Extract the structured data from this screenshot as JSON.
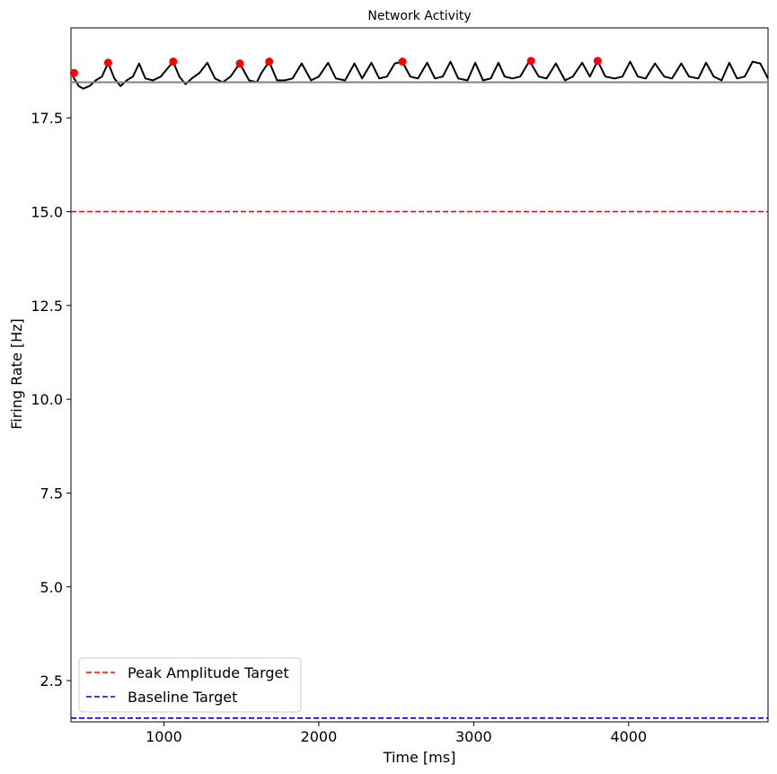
{
  "chart_data": {
    "type": "line",
    "title": "Network Activity",
    "xlabel": "Time [ms]",
    "ylabel": "Firing Rate [Hz]",
    "xlim": [
      400,
      4900
    ],
    "ylim": [
      1.4,
      19.9
    ],
    "xticks": [
      1000,
      2000,
      3000,
      4000
    ],
    "yticks": [
      2.5,
      5.0,
      7.5,
      10.0,
      12.5,
      15.0,
      17.5
    ],
    "xtick_labels": [
      "1000",
      "2000",
      "3000",
      "4000"
    ],
    "ytick_labels": [
      "2.5",
      "5.0",
      "7.5",
      "10.0",
      "12.5",
      "15.0",
      "17.5"
    ],
    "grid": false,
    "legend_position": "bottom-left",
    "series": [
      {
        "role": "firing-rate",
        "color": "#000000",
        "x": [
          400,
          450,
          480,
          520,
          560,
          600,
          640,
          680,
          720,
          760,
          800,
          840,
          880,
          930,
          980,
          1020,
          1060,
          1100,
          1140,
          1180,
          1230,
          1280,
          1330,
          1380,
          1430,
          1490,
          1550,
          1600,
          1630,
          1680,
          1730,
          1780,
          1830,
          1890,
          1950,
          2000,
          2060,
          2110,
          2170,
          2230,
          2280,
          2340,
          2390,
          2440,
          2490,
          2540,
          2590,
          2640,
          2700,
          2750,
          2800,
          2850,
          2900,
          2960,
          3010,
          3060,
          3110,
          3160,
          3200,
          3250,
          3300,
          3360,
          3420,
          3470,
          3530,
          3590,
          3640,
          3700,
          3750,
          3800,
          3850,
          3910,
          3960,
          4010,
          4060,
          4110,
          4170,
          4230,
          4280,
          4340,
          4390,
          4450,
          4500,
          4550,
          4600,
          4650,
          4700,
          4750,
          4800,
          4850,
          4900
        ],
        "y": [
          18.7,
          18.35,
          18.28,
          18.35,
          18.5,
          18.6,
          18.97,
          18.55,
          18.35,
          18.5,
          18.6,
          18.95,
          18.55,
          18.5,
          18.6,
          18.8,
          19.0,
          18.6,
          18.4,
          18.55,
          18.7,
          18.97,
          18.55,
          18.45,
          18.6,
          18.95,
          18.5,
          18.45,
          18.7,
          19.0,
          18.5,
          18.5,
          18.55,
          18.95,
          18.5,
          18.6,
          18.97,
          18.55,
          18.5,
          18.95,
          18.55,
          18.97,
          18.55,
          18.6,
          18.95,
          19.0,
          18.6,
          18.55,
          18.97,
          18.55,
          18.6,
          19.0,
          18.55,
          18.5,
          18.97,
          18.5,
          18.55,
          18.97,
          18.6,
          18.55,
          18.6,
          19.02,
          18.6,
          18.55,
          18.95,
          18.5,
          18.6,
          18.97,
          18.6,
          19.02,
          18.6,
          18.55,
          18.6,
          19.0,
          18.6,
          18.55,
          18.95,
          18.6,
          18.55,
          18.95,
          18.6,
          18.55,
          18.97,
          18.6,
          18.5,
          18.97,
          18.55,
          18.6,
          19.0,
          18.95,
          18.55
        ]
      },
      {
        "role": "reference-line",
        "color": "#808080",
        "x": [
          400,
          4900
        ],
        "y": [
          18.45,
          18.45
        ]
      }
    ],
    "peaks": {
      "color": "#ff0000",
      "x": [
        420,
        640,
        1060,
        1490,
        1680,
        2540,
        3370,
        3800
      ],
      "y": [
        18.7,
        18.97,
        19.0,
        18.95,
        19.0,
        19.0,
        19.02,
        19.02
      ]
    },
    "reference_lines": [
      {
        "label": "Peak Amplitude Target",
        "y": 15.0,
        "color": "#ff0000",
        "style": "dashed"
      },
      {
        "label": "Baseline Target",
        "y": 1.5,
        "color": "#0000cc",
        "style": "dashed"
      }
    ],
    "legend": [
      {
        "label": "Peak Amplitude Target",
        "color": "#ff0000"
      },
      {
        "label": "Baseline Target",
        "color": "#0000cc"
      }
    ]
  }
}
